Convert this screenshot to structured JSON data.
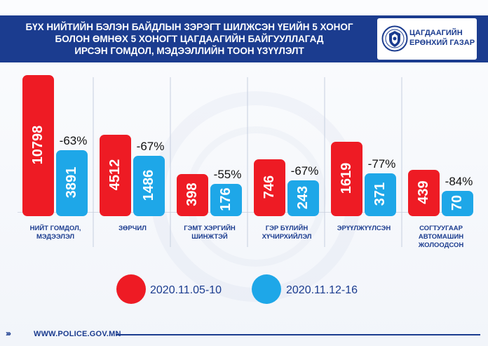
{
  "header": {
    "title_lines": [
      "БҮХ НИЙТИЙН БЭЛЭН БАЙДЛЫН ЗЭРЭГТ ШИЛЖСЭН ҮЕИЙН 5 ХОНОГ",
      "БОЛОН ӨМНӨХ 5 ХОНОГТ ЦАГДААГИЙН БАЙГУУЛЛАГАД",
      "ИРСЭН ГОМДОЛ, МЭДЭЭЛЛИЙН ТООН ҮЗҮҮЛЭЛТ"
    ],
    "org_name_lines": [
      "ЦАГДААГИЙН",
      "ЕРӨНХИЙ ГАЗАР"
    ]
  },
  "footer": {
    "url": "WWW.POLICE.GOV.MN"
  },
  "colors": {
    "header_bg": "#1b3c8f",
    "series1": "#ee1b24",
    "series2": "#1ea7e8"
  },
  "chart_data": {
    "type": "bar",
    "categories": [
      [
        "НИЙТ ГОМДОЛ,",
        "МЭДЭЭЛЭЛ"
      ],
      [
        "ЗӨРЧИЛ"
      ],
      [
        "ГЭМТ ХЭРГИЙН",
        "ШИНЖТЭЙ"
      ],
      [
        "ГЭР БҮЛИЙН",
        "ХҮЧИРХИЙЛЭЛ"
      ],
      [
        "ЭРҮҮЛЖҮҮЛСЭН"
      ],
      [
        "СОГТУУГААР",
        "АВТОМАШИН",
        "ЖОЛООДСОН"
      ]
    ],
    "series": [
      {
        "name": "2020.11.05-10",
        "color": "#ee1b24",
        "values": [
          10798,
          4512,
          398,
          746,
          1619,
          439
        ]
      },
      {
        "name": "2020.11.12-16",
        "color": "#1ea7e8",
        "values": [
          3891,
          1486,
          176,
          243,
          371,
          70
        ]
      }
    ],
    "change_labels": [
      "-63%",
      "-67%",
      "-55%",
      "-67%",
      "-77%",
      "-84%"
    ],
    "legend_position": "bottom",
    "grid": false
  }
}
